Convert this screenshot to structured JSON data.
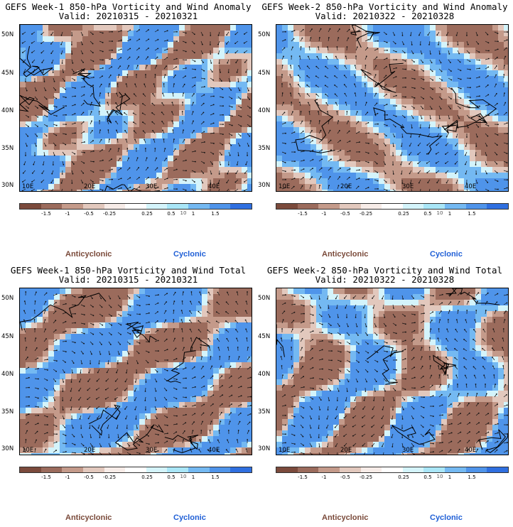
{
  "panels": [
    {
      "title": "GEFS Week-1 850-hPa Vorticity and Wind Anomaly",
      "valid": "Valid: 20210315 - 20210321",
      "seed": 3
    },
    {
      "title": "GEFS Week-2 850-hPa Vorticity and Wind Anomaly",
      "valid": "Valid: 20210322 - 20210328",
      "seed": 7
    },
    {
      "title": "GEFS Week-1 850-hPa Vorticity and Wind Total",
      "valid": "Valid: 20210315 - 20210321",
      "seed": 11
    },
    {
      "title": "GEFS Week-2 850-hPa Vorticity and Wind Total",
      "valid": "Valid: 20210322 - 20210328",
      "seed": 17
    }
  ],
  "lat_labels": [
    "50N",
    "45N",
    "40N",
    "35N",
    "30N"
  ],
  "lon_labels": [
    "10E",
    "20E",
    "30E",
    "40E"
  ],
  "colorbar": {
    "colors": [
      "#7b4a3c",
      "#9b6b5c",
      "#c49a8a",
      "#e2c8bd",
      "#f7ece8",
      "#ffffff",
      "#d4f4fb",
      "#a9e6f7",
      "#74b9f2",
      "#4f94ea",
      "#2f6fe0"
    ],
    "labels": [
      "-1.5",
      "-1",
      "-0.5",
      "-0.25",
      "0.25",
      "0.5",
      "1",
      "1.5"
    ],
    "scale_mark": "10"
  },
  "legend": {
    "anticyclonic": "Anticyclonic",
    "cyclonic": "Cyclonic"
  }
}
